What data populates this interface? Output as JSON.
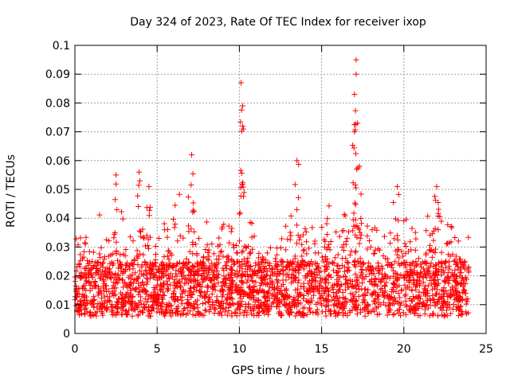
{
  "chart_data": {
    "type": "scatter",
    "title": "Day 324 of 2023, Rate Of TEC Index for receiver ixop",
    "xlabel": "GPS time / hours",
    "ylabel": "ROTI / TECUs",
    "xlim": [
      0,
      25
    ],
    "ylim": [
      0,
      0.1
    ],
    "xticks": [
      0,
      5,
      10,
      15,
      20,
      25
    ],
    "xtick_labels": [
      "0",
      "5",
      "10",
      "15",
      "20",
      "25"
    ],
    "yticks": [
      0,
      0.01,
      0.02,
      0.03,
      0.04,
      0.05,
      0.06,
      0.07,
      0.08,
      0.09,
      0.1
    ],
    "ytick_labels": [
      "0",
      "0.01",
      "0.02",
      "0.03",
      "0.04",
      "0.05",
      "0.06",
      "0.07",
      "0.08",
      "0.09",
      "0.1"
    ],
    "grid": true,
    "marker": "+",
    "marker_color": "#ff0000",
    "series": [
      {
        "name": "ROTI",
        "x_range": [
          0,
          23.95
        ],
        "typical_band": [
          0.006,
          0.025
        ],
        "peaks": [
          {
            "x": 2.5,
            "y": 0.055
          },
          {
            "x": 3.9,
            "y": 0.056
          },
          {
            "x": 4.5,
            "y": 0.051
          },
          {
            "x": 7.1,
            "y": 0.062
          },
          {
            "x": 10.1,
            "y": 0.087
          },
          {
            "x": 10.2,
            "y": 0.079
          },
          {
            "x": 10.2,
            "y": 0.072
          },
          {
            "x": 13.5,
            "y": 0.06
          },
          {
            "x": 17.1,
            "y": 0.095
          },
          {
            "x": 17.1,
            "y": 0.09
          },
          {
            "x": 17.0,
            "y": 0.083
          },
          {
            "x": 17.0,
            "y": 0.07
          },
          {
            "x": 17.3,
            "y": 0.058
          },
          {
            "x": 19.6,
            "y": 0.051
          },
          {
            "x": 22.0,
            "y": 0.051
          }
        ]
      }
    ]
  }
}
